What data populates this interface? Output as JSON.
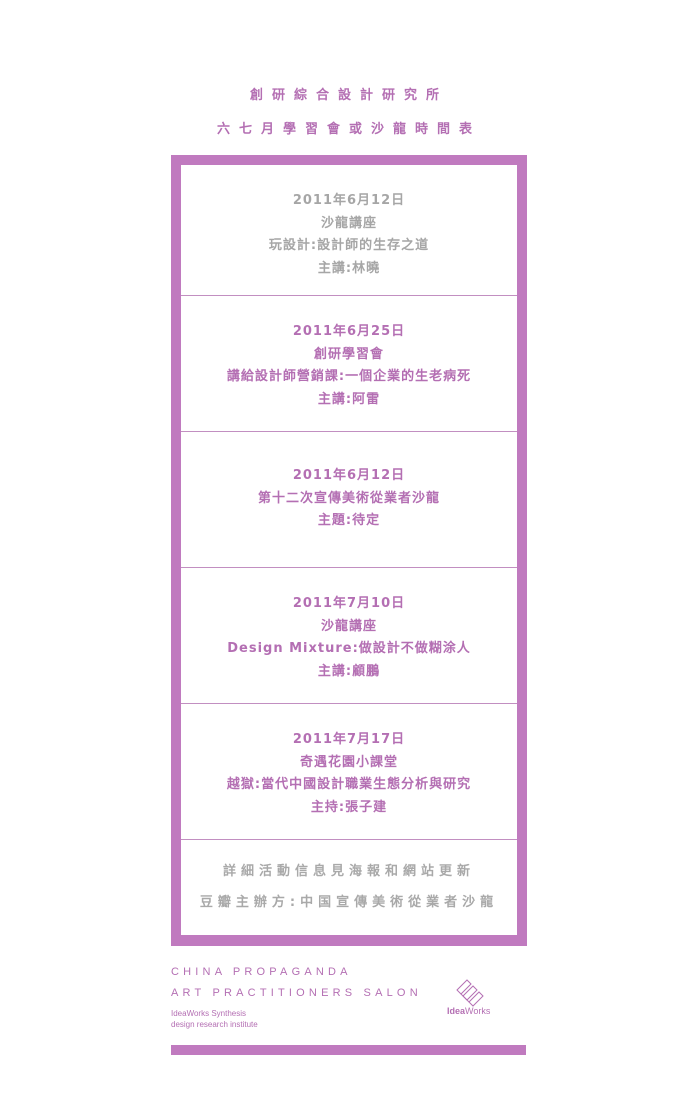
{
  "header": {
    "title1": "創研綜合設計研究所",
    "title2": "六七月學習會或沙龍時間表"
  },
  "events": [
    {
      "date": "2011年6月12日",
      "lines": [
        "沙龍講座",
        "玩設計:設計師的生存之道",
        "主講:林曉"
      ]
    },
    {
      "date": "2011年6月25日",
      "lines": [
        "創研學習會",
        "講給設計師營銷課:一個企業的生老病死",
        "主講:阿雷"
      ]
    },
    {
      "date": "2011年6月12日",
      "lines": [
        "第十二次宣傳美術從業者沙龍",
        "主題:待定"
      ]
    },
    {
      "date": "2011年7月10日",
      "lines": [
        "沙龍講座",
        "Design Mixture:做設計不做糊涂人",
        "主講:顧鵬"
      ]
    },
    {
      "date": "2011年7月17日",
      "lines": [
        "奇遇花園小課堂",
        "越獄:當代中國設計職業生態分析與研究",
        "主持:張子建"
      ]
    }
  ],
  "notes": {
    "line1": "詳細活動信息見海報和網站更新",
    "line2": "豆瓣主辦方:中国宣傳美術從業者沙龍"
  },
  "footer": {
    "en_line1": "CHINA PROPAGANDA",
    "en_line2": "ART PRACTITIONERS SALON",
    "small_line1": "IdeaWorks Synthesis",
    "small_line2": "design research institute",
    "logo_bold": "Idea",
    "logo_light": "Works"
  },
  "colors": {
    "accent": "#c07abf",
    "text_purple": "#b46fb3",
    "text_gray": "#a6a6a6"
  }
}
